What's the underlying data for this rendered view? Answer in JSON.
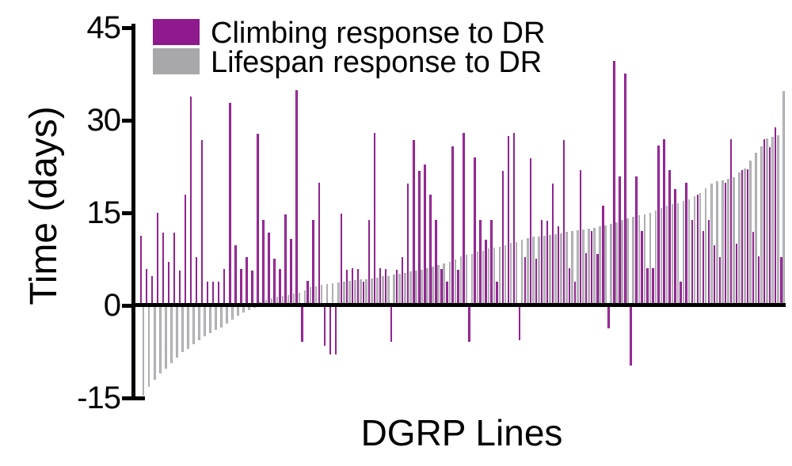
{
  "figure": {
    "x_axis_label": "DGRP Lines",
    "y_axis_label": "Time (days)"
  },
  "legend": {
    "items": [
      {
        "name": "climbing",
        "label": "Climbing response to DR",
        "color": "#8E1A8E"
      },
      {
        "name": "lifespan",
        "label": "Lifespan response to DR",
        "color": "#A8A8AB"
      }
    ]
  },
  "chart_data": {
    "type": "bar",
    "title": "",
    "xlabel": "DGRP Lines",
    "ylabel": "Time (days)",
    "ylim": [
      -15,
      45
    ],
    "yticks": [
      45,
      30,
      15,
      0,
      -15
    ],
    "grid": false,
    "legend_position": "top-left",
    "x_description": "One pair of bars per DGRP line, lines sorted by increasing lifespan response to DR",
    "units": "days",
    "categories_note": "116 DGRP lines (unlabeled on x-axis)",
    "series": [
      {
        "name": "Climbing response to DR",
        "color": "#8E1A8E",
        "values": [
          11.3,
          5.9,
          4.7,
          15.0,
          11.8,
          7.1,
          11.8,
          5.7,
          17.9,
          33.8,
          7.8,
          26.8,
          3.8,
          3.8,
          3.8,
          5.9,
          32.8,
          9.7,
          5.9,
          7.8,
          5.7,
          27.8,
          13.8,
          11.8,
          7.6,
          5.9,
          14.8,
          10.8,
          34.9,
          -5.9,
          4.0,
          13.8,
          19.9,
          -6.5,
          -8.0,
          -8.0,
          14.9,
          5.8,
          6.0,
          5.9,
          3.8,
          13.8,
          27.9,
          6.0,
          5.9,
          -5.9,
          5.8,
          7.8,
          19.8,
          26.8,
          21.8,
          22.8,
          17.9,
          13.9,
          5.9,
          3.8,
          25.8,
          5.8,
          27.9,
          -5.9,
          24.0,
          13.9,
          10.6,
          13.9,
          3.8,
          21.8,
          27.4,
          27.9,
          -5.6,
          7.8,
          23.9,
          7.6,
          13.9,
          13.7,
          19.8,
          12.8,
          26.8,
          6.0,
          3.8,
          21.9,
          8.5,
          12.1,
          8.3,
          16.1,
          -3.7,
          39.6,
          20.9,
          37.6,
          -9.7,
          20.9,
          12.0,
          6.0,
          6.0,
          25.9,
          26.9,
          21.9,
          18.8,
          3.8,
          19.9,
          13.9,
          18.0,
          12.0,
          13.8,
          9.8,
          7.8,
          19.9,
          26.9,
          10.0,
          21.9,
          22.0,
          11.9,
          7.9,
          26.9,
          25.6,
          28.8,
          7.8
        ]
      },
      {
        "name": "Lifespan response to DR",
        "color": "#A8A8AB",
        "values": [
          -14.6,
          -13.2,
          -12.0,
          -11.0,
          -10.2,
          -9.3,
          -8.5,
          -7.6,
          -7.0,
          -6.3,
          -5.6,
          -5.0,
          -4.5,
          -4.0,
          -3.6,
          -3.0,
          -2.3,
          -1.7,
          -1.2,
          -0.8,
          -0.4,
          0.5,
          0.9,
          1.2,
          1.4,
          1.5,
          1.7,
          1.9,
          2.1,
          2.5,
          2.9,
          3.1,
          3.3,
          3.5,
          3.6,
          3.7,
          3.9,
          4.0,
          4.1,
          4.2,
          4.3,
          4.4,
          4.5,
          4.7,
          4.8,
          5.0,
          5.1,
          5.3,
          5.5,
          5.6,
          5.8,
          6.0,
          6.3,
          6.6,
          6.8,
          7.1,
          7.5,
          8.0,
          8.2,
          8.4,
          8.7,
          8.9,
          9.2,
          9.4,
          9.5,
          9.8,
          10.1,
          10.3,
          10.6,
          10.9,
          11.1,
          11.2,
          11.3,
          11.4,
          11.5,
          11.7,
          11.9,
          12.0,
          12.2,
          12.3,
          12.5,
          12.6,
          12.8,
          13.0,
          13.2,
          13.5,
          13.9,
          14.1,
          14.4,
          14.6,
          14.8,
          15.0,
          15.4,
          15.8,
          16.2,
          16.4,
          16.6,
          16.9,
          17.2,
          17.7,
          18.2,
          19.0,
          19.8,
          20.1,
          20.3,
          20.5,
          20.8,
          21.5,
          22.2,
          23.5,
          24.8,
          25.8,
          27.0,
          27.3,
          27.6,
          34.8
        ]
      }
    ]
  }
}
